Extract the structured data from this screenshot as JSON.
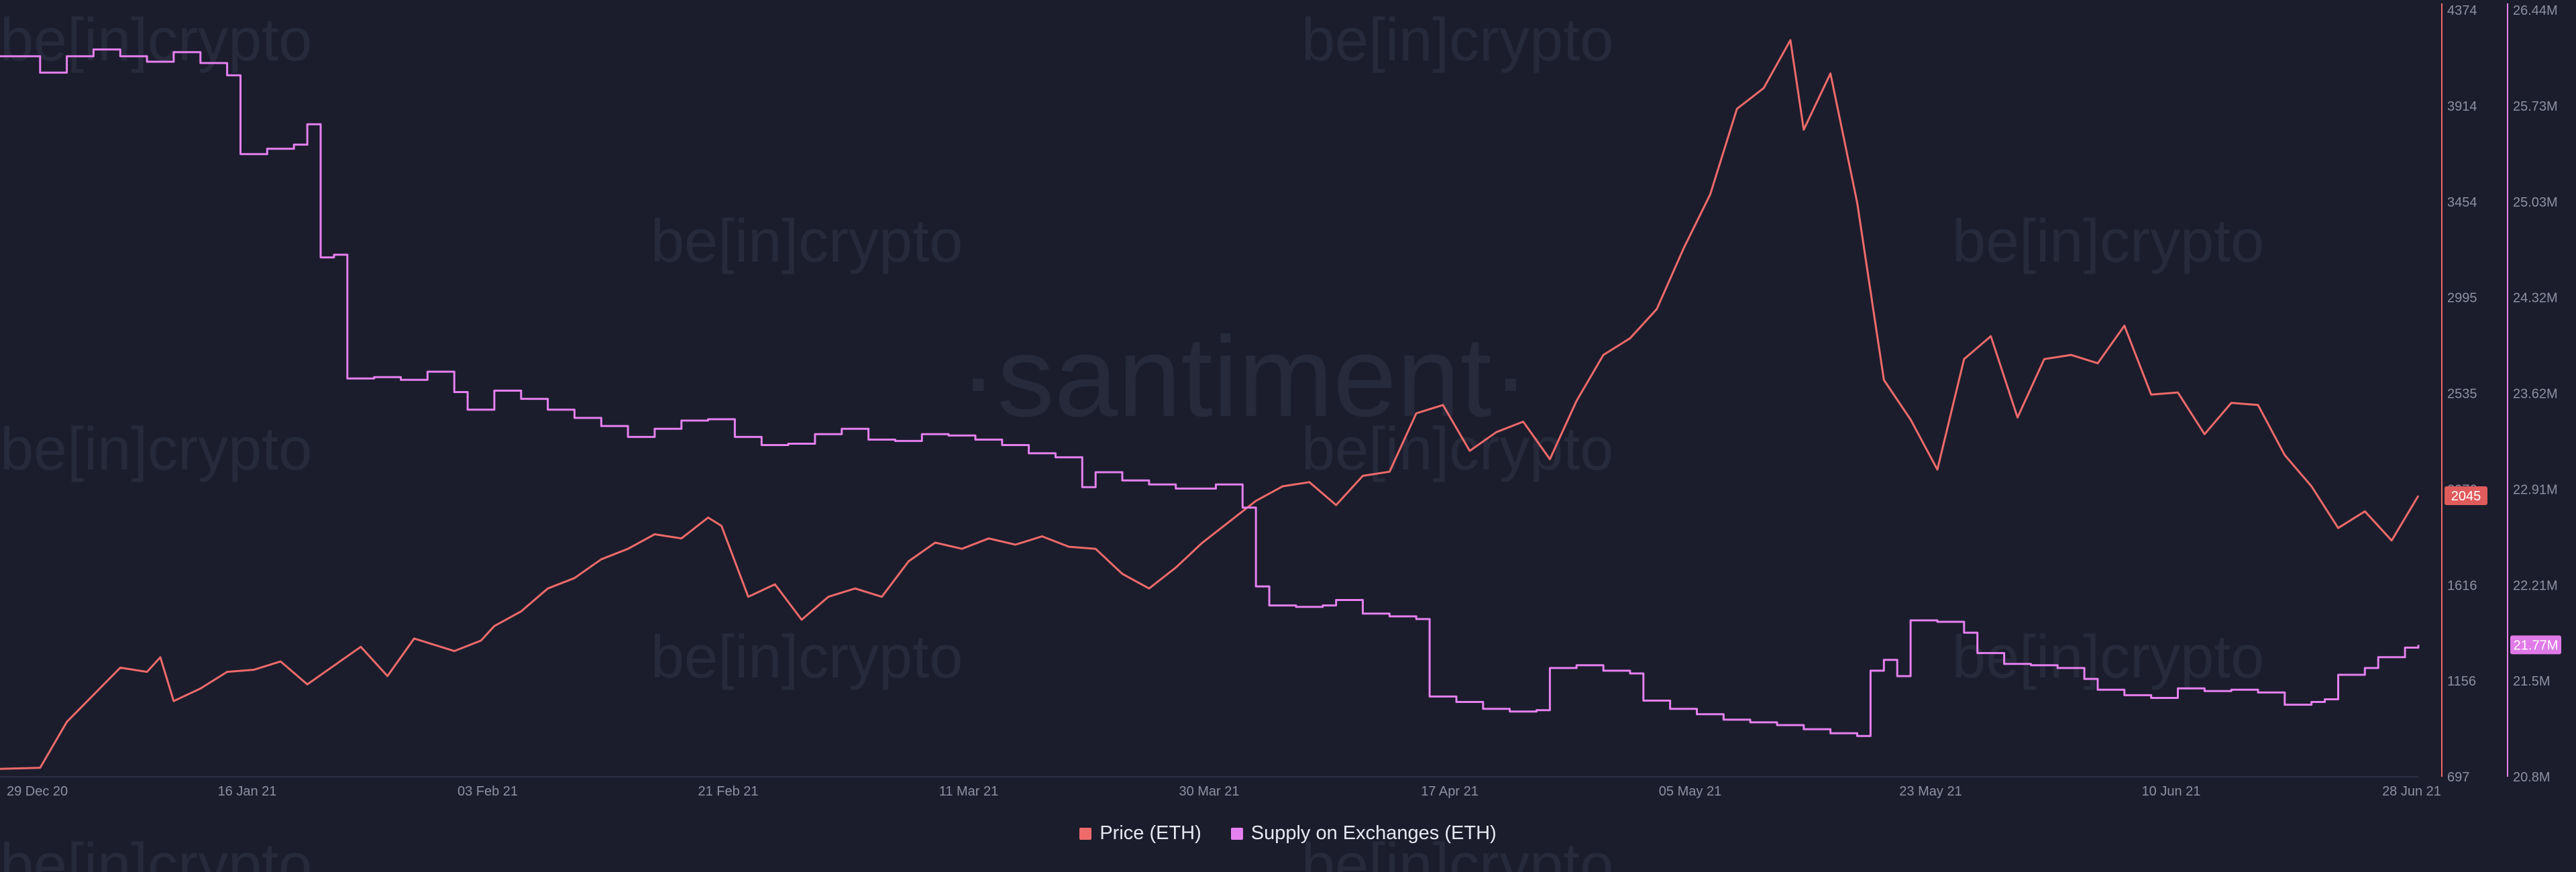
{
  "watermarks": {
    "brand": "be[in]crypto",
    "center": "·santiment·"
  },
  "colors": {
    "background": "#1b1d2c",
    "price": "#ef6a6a",
    "supply": "#e580ef",
    "price_badge": "#e05b5b",
    "supply_badge": "#e07ae8"
  },
  "chart_data": {
    "type": "line",
    "x_tick_labels": [
      "29 Dec 20",
      "16 Jan 21",
      "03 Feb 21",
      "21 Feb 21",
      "11 Mar 21",
      "30 Mar 21",
      "17 Apr 21",
      "05 May 21",
      "23 May 21",
      "10 Jun 21",
      "28 Jun 21"
    ],
    "x_range": [
      "2020-12-29",
      "2021-06-28"
    ],
    "axes": {
      "price": {
        "ticks": [
          "4374",
          "3914",
          "3454",
          "2995",
          "2535",
          "2076",
          "1616",
          "1156",
          "697"
        ],
        "range": [
          697,
          4374
        ]
      },
      "supply": {
        "ticks": [
          "26.44M",
          "25.73M",
          "25.03M",
          "24.32M",
          "23.62M",
          "22.91M",
          "22.21M",
          "21.5M",
          "20.8M"
        ],
        "range": [
          20.8,
          26.44
        ],
        "unit": "M"
      }
    },
    "badges": {
      "price": "2045",
      "supply": "21.77M"
    },
    "legend_position": "bottom-center",
    "series": [
      {
        "name": "Price (ETH)",
        "axis": "price",
        "points": [
          [
            "2020-12-29",
            735
          ],
          [
            "2021-01-01",
            740
          ],
          [
            "2021-01-03",
            960
          ],
          [
            "2021-01-05",
            1090
          ],
          [
            "2021-01-07",
            1220
          ],
          [
            "2021-01-09",
            1200
          ],
          [
            "2021-01-10",
            1270
          ],
          [
            "2021-01-11",
            1060
          ],
          [
            "2021-01-13",
            1120
          ],
          [
            "2021-01-15",
            1200
          ],
          [
            "2021-01-17",
            1210
          ],
          [
            "2021-01-19",
            1250
          ],
          [
            "2021-01-21",
            1140
          ],
          [
            "2021-01-23",
            1230
          ],
          [
            "2021-01-25",
            1320
          ],
          [
            "2021-01-27",
            1180
          ],
          [
            "2021-01-29",
            1360
          ],
          [
            "2021-02-01",
            1300
          ],
          [
            "2021-02-03",
            1350
          ],
          [
            "2021-02-04",
            1420
          ],
          [
            "2021-02-06",
            1490
          ],
          [
            "2021-02-08",
            1600
          ],
          [
            "2021-02-10",
            1650
          ],
          [
            "2021-02-12",
            1740
          ],
          [
            "2021-02-14",
            1790
          ],
          [
            "2021-02-16",
            1860
          ],
          [
            "2021-02-18",
            1840
          ],
          [
            "2021-02-20",
            1940
          ],
          [
            "2021-02-21",
            1900
          ],
          [
            "2021-02-23",
            1560
          ],
          [
            "2021-02-25",
            1620
          ],
          [
            "2021-02-27",
            1450
          ],
          [
            "2021-03-01",
            1560
          ],
          [
            "2021-03-03",
            1600
          ],
          [
            "2021-03-05",
            1560
          ],
          [
            "2021-03-07",
            1730
          ],
          [
            "2021-03-09",
            1820
          ],
          [
            "2021-03-11",
            1790
          ],
          [
            "2021-03-13",
            1840
          ],
          [
            "2021-03-15",
            1810
          ],
          [
            "2021-03-17",
            1850
          ],
          [
            "2021-03-19",
            1800
          ],
          [
            "2021-03-21",
            1790
          ],
          [
            "2021-03-23",
            1670
          ],
          [
            "2021-03-25",
            1600
          ],
          [
            "2021-03-27",
            1700
          ],
          [
            "2021-03-29",
            1820
          ],
          [
            "2021-03-31",
            1920
          ],
          [
            "2021-04-02",
            2020
          ],
          [
            "2021-04-04",
            2090
          ],
          [
            "2021-04-06",
            2110
          ],
          [
            "2021-04-08",
            2000
          ],
          [
            "2021-04-10",
            2140
          ],
          [
            "2021-04-12",
            2160
          ],
          [
            "2021-04-14",
            2440
          ],
          [
            "2021-04-16",
            2480
          ],
          [
            "2021-04-18",
            2260
          ],
          [
            "2021-04-20",
            2350
          ],
          [
            "2021-04-22",
            2400
          ],
          [
            "2021-04-24",
            2220
          ],
          [
            "2021-04-26",
            2500
          ],
          [
            "2021-04-28",
            2720
          ],
          [
            "2021-04-30",
            2800
          ],
          [
            "2021-05-02",
            2940
          ],
          [
            "2021-05-04",
            3230
          ],
          [
            "2021-05-06",
            3490
          ],
          [
            "2021-05-08",
            3900
          ],
          [
            "2021-05-10",
            4000
          ],
          [
            "2021-05-12",
            4230
          ],
          [
            "2021-05-13",
            3800
          ],
          [
            "2021-05-15",
            4070
          ],
          [
            "2021-05-17",
            3450
          ],
          [
            "2021-05-19",
            2600
          ],
          [
            "2021-05-21",
            2410
          ],
          [
            "2021-05-23",
            2170
          ],
          [
            "2021-05-25",
            2700
          ],
          [
            "2021-05-27",
            2810
          ],
          [
            "2021-05-29",
            2420
          ],
          [
            "2021-05-31",
            2700
          ],
          [
            "2021-06-02",
            2720
          ],
          [
            "2021-06-04",
            2680
          ],
          [
            "2021-06-06",
            2860
          ],
          [
            "2021-06-08",
            2530
          ],
          [
            "2021-06-10",
            2540
          ],
          [
            "2021-06-12",
            2340
          ],
          [
            "2021-06-14",
            2490
          ],
          [
            "2021-06-16",
            2480
          ],
          [
            "2021-06-18",
            2240
          ],
          [
            "2021-06-20",
            2090
          ],
          [
            "2021-06-22",
            1890
          ],
          [
            "2021-06-24",
            1970
          ],
          [
            "2021-06-26",
            1830
          ],
          [
            "2021-06-28",
            2045
          ]
        ]
      },
      {
        "name": "Supply on Exchanges (ETH)",
        "axis": "supply",
        "points": [
          [
            "2020-12-29",
            26.1
          ],
          [
            "2021-01-01",
            25.98
          ],
          [
            "2021-01-03",
            26.1
          ],
          [
            "2021-01-05",
            26.15
          ],
          [
            "2021-01-07",
            26.1
          ],
          [
            "2021-01-09",
            26.06
          ],
          [
            "2021-01-11",
            26.13
          ],
          [
            "2021-01-13",
            26.05
          ],
          [
            "2021-01-15",
            25.96
          ],
          [
            "2021-01-16",
            25.38
          ],
          [
            "2021-01-18",
            25.42
          ],
          [
            "2021-01-20",
            25.45
          ],
          [
            "2021-01-21",
            25.6
          ],
          [
            "2021-01-22",
            24.62
          ],
          [
            "2021-01-23",
            24.64
          ],
          [
            "2021-01-24",
            23.73
          ],
          [
            "2021-01-26",
            23.74
          ],
          [
            "2021-01-28",
            23.72
          ],
          [
            "2021-01-30",
            23.78
          ],
          [
            "2021-02-01",
            23.63
          ],
          [
            "2021-02-02",
            23.5
          ],
          [
            "2021-02-04",
            23.64
          ],
          [
            "2021-02-06",
            23.58
          ],
          [
            "2021-02-08",
            23.5
          ],
          [
            "2021-02-10",
            23.44
          ],
          [
            "2021-02-12",
            23.38
          ],
          [
            "2021-02-14",
            23.3
          ],
          [
            "2021-02-16",
            23.36
          ],
          [
            "2021-02-18",
            23.42
          ],
          [
            "2021-02-20",
            23.43
          ],
          [
            "2021-02-22",
            23.3
          ],
          [
            "2021-02-24",
            23.24
          ],
          [
            "2021-02-26",
            23.25
          ],
          [
            "2021-02-28",
            23.32
          ],
          [
            "2021-03-02",
            23.36
          ],
          [
            "2021-03-04",
            23.28
          ],
          [
            "2021-03-06",
            23.27
          ],
          [
            "2021-03-08",
            23.32
          ],
          [
            "2021-03-10",
            23.31
          ],
          [
            "2021-03-12",
            23.28
          ],
          [
            "2021-03-14",
            23.24
          ],
          [
            "2021-03-16",
            23.18
          ],
          [
            "2021-03-18",
            23.15
          ],
          [
            "2021-03-20",
            22.93
          ],
          [
            "2021-03-21",
            23.04
          ],
          [
            "2021-03-23",
            22.98
          ],
          [
            "2021-03-25",
            22.95
          ],
          [
            "2021-03-27",
            22.92
          ],
          [
            "2021-03-30",
            22.95
          ],
          [
            "2021-04-01",
            22.78
          ],
          [
            "2021-04-02",
            22.2
          ],
          [
            "2021-04-03",
            22.06
          ],
          [
            "2021-04-05",
            22.05
          ],
          [
            "2021-04-07",
            22.06
          ],
          [
            "2021-04-08",
            22.1
          ],
          [
            "2021-04-10",
            22.0
          ],
          [
            "2021-04-12",
            21.98
          ],
          [
            "2021-04-14",
            21.96
          ],
          [
            "2021-04-15",
            21.39
          ],
          [
            "2021-04-17",
            21.35
          ],
          [
            "2021-04-19",
            21.3
          ],
          [
            "2021-04-21",
            21.28
          ],
          [
            "2021-04-23",
            21.29
          ],
          [
            "2021-04-24",
            21.6
          ],
          [
            "2021-04-26",
            21.62
          ],
          [
            "2021-04-28",
            21.58
          ],
          [
            "2021-04-30",
            21.56
          ],
          [
            "2021-05-01",
            21.36
          ],
          [
            "2021-05-03",
            21.3
          ],
          [
            "2021-05-05",
            21.26
          ],
          [
            "2021-05-07",
            21.22
          ],
          [
            "2021-05-09",
            21.2
          ],
          [
            "2021-05-11",
            21.18
          ],
          [
            "2021-05-13",
            21.15
          ],
          [
            "2021-05-15",
            21.12
          ],
          [
            "2021-05-17",
            21.1
          ],
          [
            "2021-05-18",
            21.58
          ],
          [
            "2021-05-19",
            21.66
          ],
          [
            "2021-05-20",
            21.54
          ],
          [
            "2021-05-21",
            21.95
          ],
          [
            "2021-05-23",
            21.94
          ],
          [
            "2021-05-25",
            21.86
          ],
          [
            "2021-05-26",
            21.71
          ],
          [
            "2021-05-28",
            21.63
          ],
          [
            "2021-05-30",
            21.62
          ],
          [
            "2021-06-01",
            21.6
          ],
          [
            "2021-06-03",
            21.52
          ],
          [
            "2021-06-04",
            21.44
          ],
          [
            "2021-06-06",
            21.4
          ],
          [
            "2021-06-08",
            21.38
          ],
          [
            "2021-06-10",
            21.45
          ],
          [
            "2021-06-12",
            21.43
          ],
          [
            "2021-06-14",
            21.44
          ],
          [
            "2021-06-16",
            21.42
          ],
          [
            "2021-06-18",
            21.33
          ],
          [
            "2021-06-20",
            21.35
          ],
          [
            "2021-06-21",
            21.37
          ],
          [
            "2021-06-22",
            21.55
          ],
          [
            "2021-06-24",
            21.6
          ],
          [
            "2021-06-25",
            21.68
          ],
          [
            "2021-06-27",
            21.75
          ],
          [
            "2021-06-28",
            21.77
          ]
        ]
      }
    ]
  }
}
